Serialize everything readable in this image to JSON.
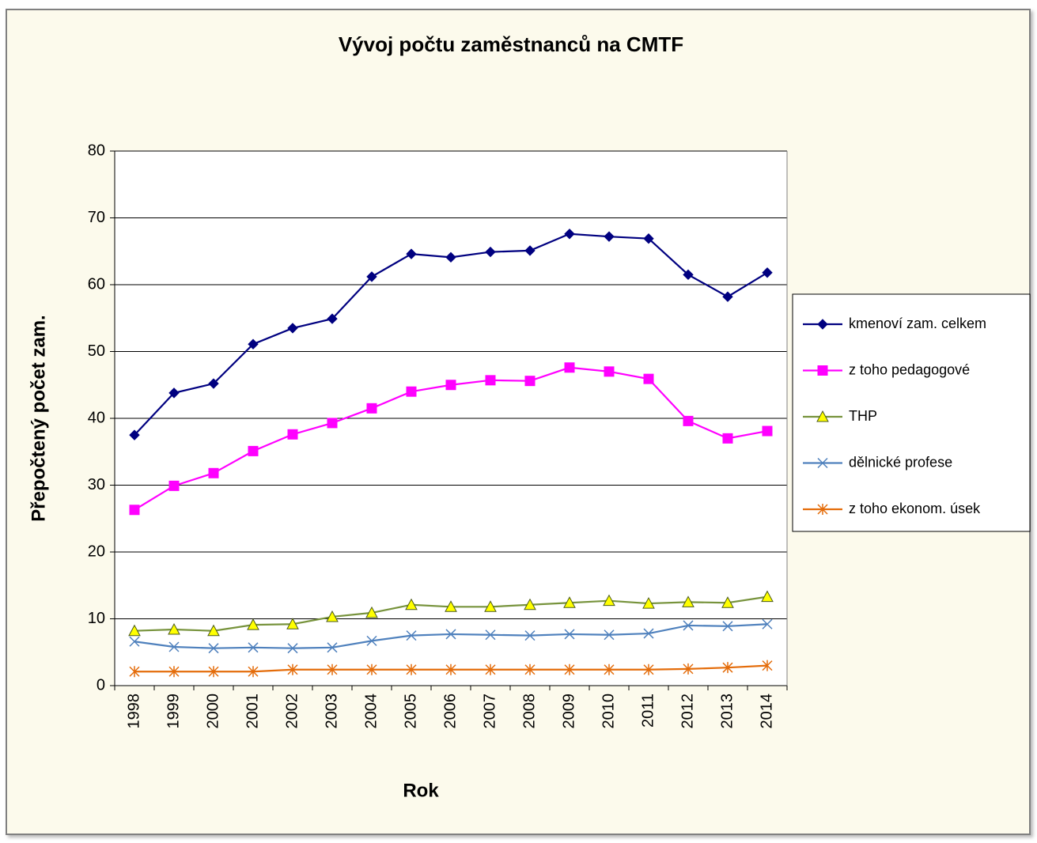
{
  "chart_data": {
    "type": "line",
    "title": "Vývoj počtu zaměstnanců na CMTF",
    "x_label": "Rok",
    "y_label": "Přepočtený počet zam.",
    "categories": [
      "1998",
      "1999",
      "2000",
      "2001",
      "2002",
      "2003",
      "2004",
      "2005",
      "2006",
      "2007",
      "2008",
      "2009",
      "2010",
      "2011",
      "2012",
      "2013",
      "2014"
    ],
    "ylim": [
      0,
      80
    ],
    "yticks": [
      0,
      10,
      20,
      30,
      40,
      50,
      60,
      70,
      80
    ],
    "grid": true,
    "legend": "right",
    "series": [
      {
        "name": "kmenoví zam. celkem",
        "color": "#000080",
        "marker": "diamond",
        "values": [
          37.5,
          43.8,
          45.2,
          51.1,
          53.5,
          54.9,
          61.2,
          64.6,
          64.1,
          64.9,
          65.1,
          67.6,
          67.2,
          66.9,
          61.5,
          58.2,
          61.8
        ]
      },
      {
        "name": "z toho pedagogové",
        "color": "#ff00ff",
        "marker": "square",
        "values": [
          26.3,
          29.9,
          31.8,
          35.1,
          37.6,
          39.3,
          41.5,
          44.0,
          45.0,
          45.7,
          45.6,
          47.6,
          47.0,
          45.9,
          39.6,
          37.0,
          38.1
        ]
      },
      {
        "name": "THP",
        "color": "#77933c",
        "marker": "triangle",
        "values": [
          8.2,
          8.4,
          8.2,
          9.1,
          9.2,
          10.3,
          10.9,
          12.1,
          11.8,
          11.8,
          12.1,
          12.4,
          12.7,
          12.3,
          12.5,
          12.4,
          13.3
        ]
      },
      {
        "name": "dělnické profese",
        "color": "#4f81bd",
        "marker": "x",
        "values": [
          6.6,
          5.8,
          5.6,
          5.7,
          5.6,
          5.7,
          6.7,
          7.5,
          7.7,
          7.6,
          7.5,
          7.7,
          7.6,
          7.8,
          9.0,
          8.9,
          9.2
        ]
      },
      {
        "name": "z toho ekonom. úsek",
        "color": "#e46c0a",
        "marker": "star",
        "values": [
          2.1,
          2.1,
          2.1,
          2.1,
          2.4,
          2.4,
          2.4,
          2.4,
          2.4,
          2.4,
          2.4,
          2.4,
          2.4,
          2.4,
          2.5,
          2.7,
          3.0
        ]
      }
    ]
  }
}
